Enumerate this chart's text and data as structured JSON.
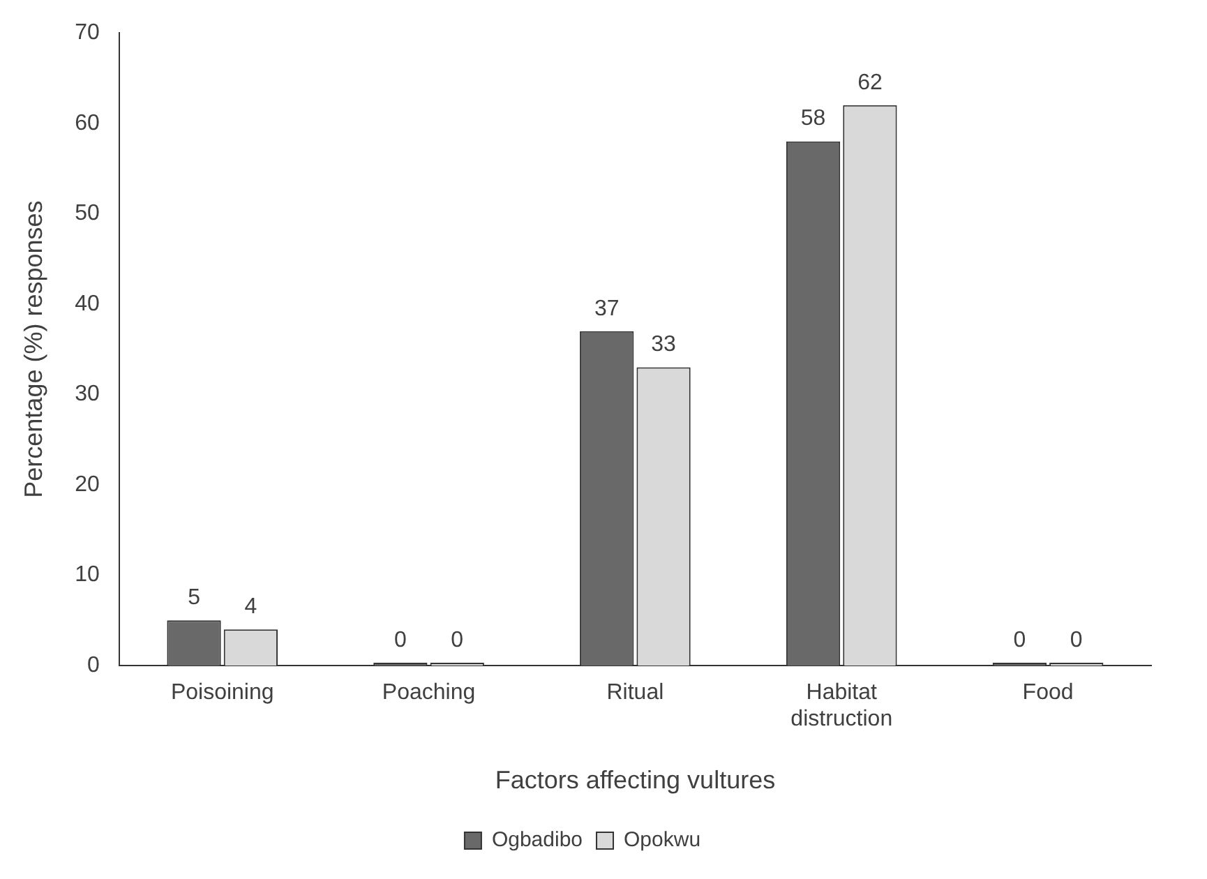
{
  "chart_data": {
    "type": "bar",
    "xlabel": "Factors affecting vultures",
    "ylabel": "Percentage (%) responses",
    "categories": [
      "Poisoining",
      "Poaching",
      "Ritual",
      "Habitat distruction",
      "Food"
    ],
    "series": [
      {
        "name": "Ogbadibo",
        "color": "#696969",
        "values": [
          5,
          0,
          37,
          58,
          0
        ]
      },
      {
        "name": "Opokwu",
        "color": "#d9d9d9",
        "values": [
          4,
          0,
          33,
          62,
          0
        ]
      }
    ],
    "ylim": [
      0,
      70
    ],
    "yticks": [
      0,
      10,
      20,
      30,
      40,
      50,
      60,
      70
    ],
    "grid": false,
    "legend": "bottom",
    "data_labels": true
  }
}
